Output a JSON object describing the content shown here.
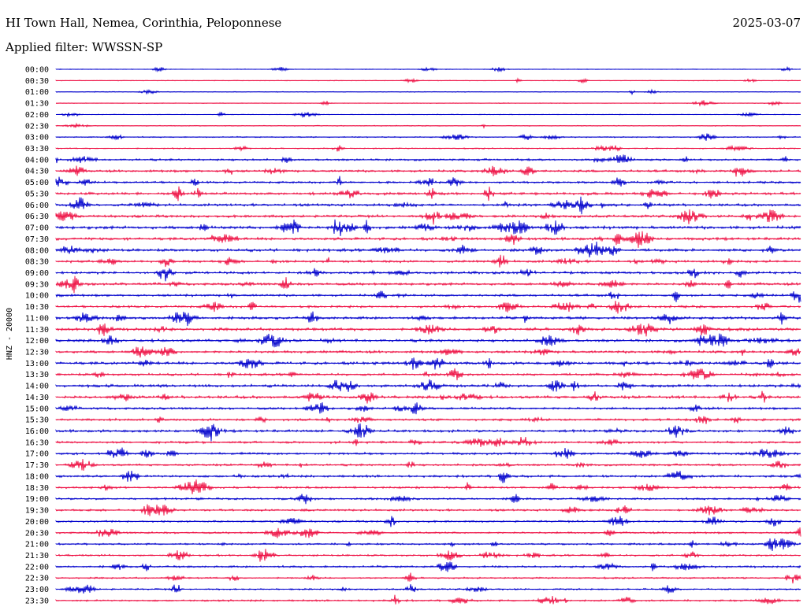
{
  "header": {
    "station": "HI Town Hall, Nemea, Corinthia, Peloponnese",
    "date": "2025-03-07",
    "filter": "Applied filter: WWSSN-SP"
  },
  "chart_data": {
    "type": "line",
    "title": "HI Town Hall, Nemea, Corinthia, Peloponnese",
    "ylabel": "HNZ - 20000",
    "colors": [
      "#0000cc",
      "#ee1144"
    ],
    "rows": [
      {
        "label": "00:00",
        "color": "#0000cc",
        "amplitude": 0.3
      },
      {
        "label": "00:30",
        "color": "#ee1144",
        "amplitude": 0.3
      },
      {
        "label": "01:00",
        "color": "#0000cc",
        "amplitude": 0.3
      },
      {
        "label": "01:30",
        "color": "#ee1144",
        "amplitude": 0.3
      },
      {
        "label": "02:00",
        "color": "#0000cc",
        "amplitude": 0.3
      },
      {
        "label": "02:30",
        "color": "#ee1144",
        "amplitude": 0.35
      },
      {
        "label": "03:00",
        "color": "#0000cc",
        "amplitude": 0.5
      },
      {
        "label": "03:30",
        "color": "#ee1144",
        "amplitude": 0.5
      },
      {
        "label": "04:00",
        "color": "#0000cc",
        "amplitude": 0.9
      },
      {
        "label": "04:30",
        "color": "#ee1144",
        "amplitude": 1.0
      },
      {
        "label": "05:00",
        "color": "#0000cc",
        "amplitude": 0.9
      },
      {
        "label": "05:30",
        "color": "#ee1144",
        "amplitude": 1.2
      },
      {
        "label": "06:00",
        "color": "#0000cc",
        "amplitude": 1.1
      },
      {
        "label": "06:30",
        "color": "#ee1144",
        "amplitude": 1.1
      },
      {
        "label": "07:00",
        "color": "#0000cc",
        "amplitude": 1.3
      },
      {
        "label": "07:30",
        "color": "#ee1144",
        "amplitude": 1.2
      },
      {
        "label": "08:00",
        "color": "#0000cc",
        "amplitude": 1.2
      },
      {
        "label": "08:30",
        "color": "#ee1144",
        "amplitude": 1.1
      },
      {
        "label": "09:00",
        "color": "#0000cc",
        "amplitude": 1.1
      },
      {
        "label": "09:30",
        "color": "#ee1144",
        "amplitude": 1.1
      },
      {
        "label": "10:00",
        "color": "#0000cc",
        "amplitude": 1.0
      },
      {
        "label": "10:30",
        "color": "#ee1144",
        "amplitude": 1.0
      },
      {
        "label": "11:00",
        "color": "#0000cc",
        "amplitude": 1.2
      },
      {
        "label": "11:30",
        "color": "#ee1144",
        "amplitude": 1.2
      },
      {
        "label": "12:00",
        "color": "#0000cc",
        "amplitude": 1.2
      },
      {
        "label": "12:30",
        "color": "#ee1144",
        "amplitude": 1.1
      },
      {
        "label": "13:00",
        "color": "#0000cc",
        "amplitude": 1.2
      },
      {
        "label": "13:30",
        "color": "#ee1144",
        "amplitude": 1.0
      },
      {
        "label": "14:00",
        "color": "#0000cc",
        "amplitude": 1.2
      },
      {
        "label": "14:30",
        "color": "#ee1144",
        "amplitude": 1.2
      },
      {
        "label": "15:00",
        "color": "#0000cc",
        "amplitude": 1.0
      },
      {
        "label": "15:30",
        "color": "#ee1144",
        "amplitude": 1.0
      },
      {
        "label": "16:00",
        "color": "#0000cc",
        "amplitude": 1.1
      },
      {
        "label": "16:30",
        "color": "#ee1144",
        "amplitude": 1.0
      },
      {
        "label": "17:00",
        "color": "#0000cc",
        "amplitude": 1.0
      },
      {
        "label": "17:30",
        "color": "#ee1144",
        "amplitude": 0.9
      },
      {
        "label": "18:00",
        "color": "#0000cc",
        "amplitude": 1.0
      },
      {
        "label": "18:30",
        "color": "#ee1144",
        "amplitude": 0.9
      },
      {
        "label": "19:00",
        "color": "#0000cc",
        "amplitude": 0.9
      },
      {
        "label": "19:30",
        "color": "#ee1144",
        "amplitude": 0.9
      },
      {
        "label": "20:00",
        "color": "#0000cc",
        "amplitude": 0.8
      },
      {
        "label": "20:30",
        "color": "#ee1144",
        "amplitude": 0.8
      },
      {
        "label": "21:00",
        "color": "#0000cc",
        "amplitude": 0.8
      },
      {
        "label": "21:30",
        "color": "#ee1144",
        "amplitude": 0.8
      },
      {
        "label": "22:00",
        "color": "#0000cc",
        "amplitude": 0.9
      },
      {
        "label": "22:30",
        "color": "#ee1144",
        "amplitude": 0.7
      },
      {
        "label": "23:00",
        "color": "#0000cc",
        "amplitude": 0.7
      },
      {
        "label": "23:30",
        "color": "#ee1144",
        "amplitude": 0.8
      }
    ]
  }
}
